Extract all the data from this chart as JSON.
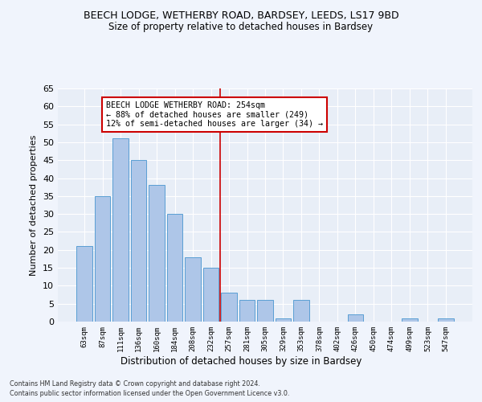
{
  "title_line1": "BEECH LODGE, WETHERBY ROAD, BARDSEY, LEEDS, LS17 9BD",
  "title_line2": "Size of property relative to detached houses in Bardsey",
  "xlabel": "Distribution of detached houses by size in Bardsey",
  "ylabel": "Number of detached properties",
  "categories": [
    "63sqm",
    "87sqm",
    "111sqm",
    "136sqm",
    "160sqm",
    "184sqm",
    "208sqm",
    "232sqm",
    "257sqm",
    "281sqm",
    "305sqm",
    "329sqm",
    "353sqm",
    "378sqm",
    "402sqm",
    "426sqm",
    "450sqm",
    "474sqm",
    "499sqm",
    "523sqm",
    "547sqm"
  ],
  "values": [
    21,
    35,
    51,
    45,
    38,
    30,
    18,
    15,
    8,
    6,
    6,
    1,
    6,
    0,
    0,
    2,
    0,
    0,
    1,
    0,
    1
  ],
  "bar_color": "#aec6e8",
  "bar_edge_color": "#5a9fd4",
  "vline_x_index": 8,
  "vline_color": "#cc0000",
  "annotation_text": "BEECH LODGE WETHERBY ROAD: 254sqm\n← 88% of detached houses are smaller (249)\n12% of semi-detached houses are larger (34) →",
  "annotation_box_color": "#ffffff",
  "annotation_border_color": "#cc0000",
  "ylim": [
    0,
    65
  ],
  "yticks": [
    0,
    5,
    10,
    15,
    20,
    25,
    30,
    35,
    40,
    45,
    50,
    55,
    60,
    65
  ],
  "bg_color": "#e8eef7",
  "fig_bg_color": "#f0f4fc",
  "grid_color": "#ffffff",
  "footer_line1": "Contains HM Land Registry data © Crown copyright and database right 2024.",
  "footer_line2": "Contains public sector information licensed under the Open Government Licence v3.0."
}
